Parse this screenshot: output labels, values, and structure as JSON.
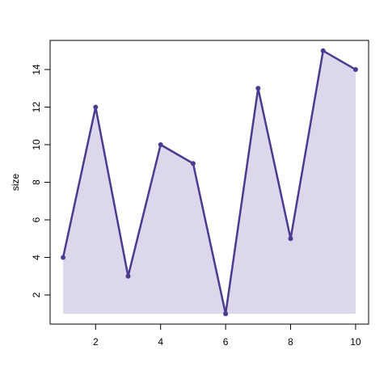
{
  "chart_data": {
    "type": "area",
    "title": "",
    "xlabel": "",
    "ylabel": "size",
    "x": [
      1,
      2,
      3,
      4,
      5,
      6,
      7,
      8,
      9,
      10
    ],
    "series": [
      {
        "values": [
          4,
          12,
          3,
          10,
          9,
          1,
          13,
          5,
          15,
          14
        ]
      }
    ],
    "area_baseline": 1,
    "xlim": [
      0.6,
      10.4
    ],
    "ylim": [
      0.45,
      15.55
    ],
    "xticks": [
      2,
      4,
      6,
      8,
      10
    ],
    "yticks": [
      2,
      4,
      6,
      8,
      10,
      12,
      14
    ],
    "grid": false,
    "legend": "none",
    "colors": {
      "line": "#4B3A8F",
      "fill": "#DCD7EA",
      "frame": "#000000"
    }
  }
}
